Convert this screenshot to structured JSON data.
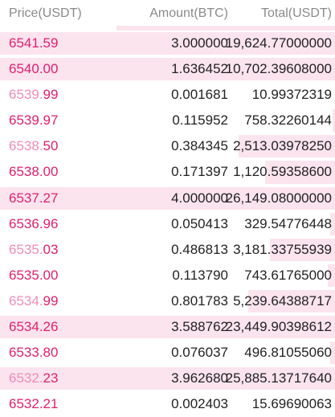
{
  "header": {
    "price": "Price(USDT)",
    "amount": "Amount(BTC)",
    "total": "Total(USDT)"
  },
  "colors": {
    "ask_price": "#e0206e",
    "ask_price_light": "#f08cb5",
    "depth_bar": "#fbe4ee"
  },
  "rows": [
    {
      "price_main": "6541.59",
      "price_tail": "",
      "amount": "3.000000",
      "total": "19,624.77000000",
      "depth": 0.95,
      "highlight": true
    },
    {
      "price_main": "6540.00",
      "price_tail": "",
      "amount": "1.636452",
      "total": "10,702.39608000",
      "depth": 0.71,
      "highlight": true
    },
    {
      "price_main": "6539.",
      "price_tail": "99",
      "amount": "0.001681",
      "total": "10.99372319",
      "depth": 0.0,
      "highlight": false
    },
    {
      "price_main": "6539.97",
      "price_tail": "",
      "amount": "0.115952",
      "total": "758.32260144",
      "depth": 0.01,
      "highlight": false
    },
    {
      "price_main": "6538.",
      "price_tail": "50",
      "amount": "0.384345",
      "total": "2,513.03978250",
      "depth": 0.4,
      "highlight": false
    },
    {
      "price_main": "6538.00",
      "price_tail": "",
      "amount": "0.171397",
      "total": "1,120.59358600",
      "depth": 0.29,
      "highlight": false
    },
    {
      "price_main": "6537.27",
      "price_tail": "",
      "amount": "4.000000",
      "total": "26,149.08000000",
      "depth": 1.0,
      "highlight": true
    },
    {
      "price_main": "6536.96",
      "price_tail": "",
      "amount": "0.050413",
      "total": "329.54776448",
      "depth": 0.02,
      "highlight": false
    },
    {
      "price_main": "6535.",
      "price_tail": "03",
      "amount": "0.486813",
      "total": "3,181.33755939",
      "depth": 0.27,
      "highlight": false
    },
    {
      "price_main": "6535.00",
      "price_tail": "",
      "amount": "0.113790",
      "total": "743.61765000",
      "depth": 0.03,
      "highlight": false
    },
    {
      "price_main": "6534.",
      "price_tail": "99",
      "amount": "0.801783",
      "total": "5,239.64388717",
      "depth": 0.36,
      "highlight": false
    },
    {
      "price_main": "6534.26",
      "price_tail": "",
      "amount": "3.588762",
      "total": "23,449.90398612",
      "depth": 1.0,
      "highlight": true
    },
    {
      "price_main": "6533.80",
      "price_tail": "",
      "amount": "0.076037",
      "total": "496.81055060",
      "depth": 0.02,
      "highlight": false
    },
    {
      "price_main": "6532.",
      "price_tail": "23",
      "amount": "3.962680",
      "total": "25,885.13717640",
      "depth": 1.0,
      "highlight": true
    },
    {
      "price_main": "6532.21",
      "price_tail": "",
      "amount": "0.002403",
      "total": "15.69690063",
      "depth": 0.0,
      "highlight": false
    }
  ]
}
